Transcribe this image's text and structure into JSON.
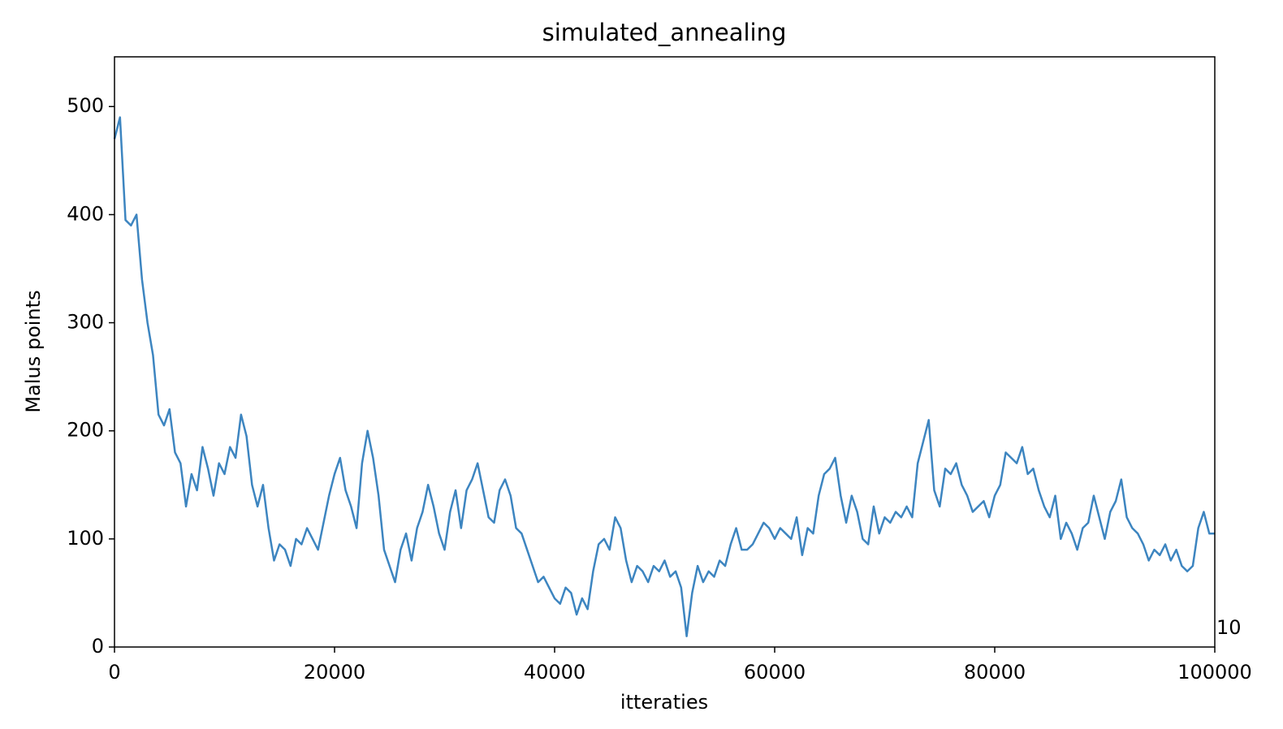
{
  "chart_data": {
    "type": "line",
    "title": "simulated_annealing",
    "x_label": "itteraties",
    "y_label": "Malus points",
    "annotation": "10",
    "color": "#3d85c0",
    "xlim": [
      0,
      100000
    ],
    "ylim": [
      0,
      546
    ],
    "xticks": [
      0,
      20000,
      40000,
      60000,
      80000,
      100000
    ],
    "yticks": [
      0,
      100,
      200,
      300,
      400,
      500
    ],
    "x": [
      0,
      500,
      1000,
      1500,
      2000,
      2500,
      3000,
      3500,
      4000,
      4500,
      5000,
      5500,
      6000,
      6500,
      7000,
      7500,
      8000,
      8500,
      9000,
      9500,
      10000,
      10500,
      11000,
      11500,
      12000,
      12500,
      13000,
      13500,
      14000,
      14500,
      15000,
      15500,
      16000,
      16500,
      17000,
      17500,
      18000,
      18500,
      19000,
      19500,
      20000,
      20500,
      21000,
      21500,
      22000,
      22500,
      23000,
      23500,
      24000,
      24500,
      25000,
      25500,
      26000,
      26500,
      27000,
      27500,
      28000,
      28500,
      29000,
      29500,
      30000,
      30500,
      31000,
      31500,
      32000,
      32500,
      33000,
      33500,
      34000,
      34500,
      35000,
      35500,
      36000,
      36500,
      37000,
      37500,
      38000,
      38500,
      39000,
      39500,
      40000,
      40500,
      41000,
      41500,
      42000,
      42500,
      43000,
      43500,
      44000,
      44500,
      45000,
      45500,
      46000,
      46500,
      47000,
      47500,
      48000,
      48500,
      49000,
      49500,
      50000,
      50500,
      51000,
      51500,
      52000,
      52500,
      53000,
      53500,
      54000,
      54500,
      55000,
      55500,
      56000,
      56500,
      57000,
      57500,
      58000,
      58500,
      59000,
      59500,
      60000,
      60500,
      61000,
      61500,
      62000,
      62500,
      63000,
      63500,
      64000,
      64500,
      65000,
      65500,
      66000,
      66500,
      67000,
      67500,
      68000,
      68500,
      69000,
      69500,
      70000,
      70500,
      71000,
      71500,
      72000,
      72500,
      73000,
      73500,
      74000,
      74500,
      75000,
      75500,
      76000,
      76500,
      77000,
      77500,
      78000,
      78500,
      79000,
      79500,
      80000,
      80500,
      81000,
      81500,
      82000,
      82500,
      83000,
      83500,
      84000,
      84500,
      85000,
      85500,
      86000,
      86500,
      87000,
      87500,
      88000,
      88500,
      89000,
      89500,
      90000,
      90500,
      91000,
      91500,
      92000,
      92500,
      93000,
      93500,
      94000,
      94500,
      95000,
      95500,
      96000,
      96500,
      97000,
      97500,
      98000,
      98500,
      99000,
      99500,
      100000
    ],
    "values": [
      470,
      490,
      395,
      390,
      400,
      340,
      300,
      270,
      215,
      205,
      220,
      180,
      170,
      130,
      160,
      145,
      185,
      165,
      140,
      170,
      160,
      185,
      175,
      215,
      195,
      150,
      130,
      150,
      110,
      80,
      95,
      90,
      75,
      100,
      95,
      110,
      100,
      90,
      115,
      140,
      160,
      175,
      145,
      130,
      110,
      170,
      200,
      175,
      140,
      90,
      75,
      60,
      90,
      105,
      80,
      110,
      125,
      150,
      130,
      105,
      90,
      125,
      145,
      110,
      145,
      155,
      170,
      145,
      120,
      115,
      145,
      155,
      140,
      110,
      105,
      90,
      75,
      60,
      65,
      55,
      45,
      40,
      55,
      50,
      30,
      45,
      35,
      70,
      95,
      100,
      90,
      120,
      110,
      80,
      60,
      75,
      70,
      60,
      75,
      70,
      80,
      65,
      70,
      55,
      10,
      50,
      75,
      60,
      70,
      65,
      80,
      75,
      95,
      110,
      90,
      90,
      95,
      105,
      115,
      110,
      100,
      110,
      105,
      100,
      120,
      85,
      110,
      105,
      140,
      160,
      165,
      175,
      140,
      115,
      140,
      125,
      100,
      95,
      130,
      105,
      120,
      115,
      125,
      120,
      130,
      120,
      170,
      190,
      210,
      145,
      130,
      165,
      160,
      170,
      150,
      140,
      125,
      130,
      135,
      120,
      140,
      150,
      180,
      175,
      170,
      185,
      160,
      165,
      145,
      130,
      120,
      140,
      100,
      115,
      105,
      90,
      110,
      115,
      140,
      120,
      100,
      125,
      135,
      155,
      120,
      110,
      105,
      95,
      80,
      90,
      85,
      95,
      80,
      90,
      75,
      70,
      75,
      110,
      125,
      105,
      105
    ]
  }
}
